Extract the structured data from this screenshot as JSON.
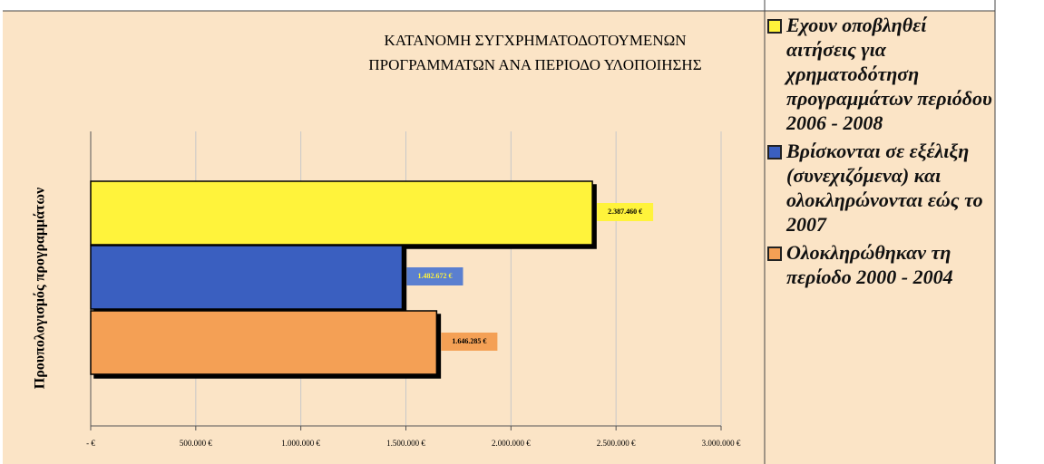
{
  "chart_data": {
    "type": "barh",
    "title": [
      "ΚΑΤΑΝΟΜΗ ΣΥΓΧΡΗΜΑΤΟΔΟΤΟΥΜΕΝΩΝ",
      "ΠΡΟΓΡΑΜΜΑΤΩΝ ΑΝΑ ΠΕΡΙΟΔΟ ΥΛΟΠΟΙΗΣΗΣ"
    ],
    "y_label": "Προυπολογισμός προγραμμάτων",
    "series": [
      {
        "name": "Εχουν οποβληθεί αιτήσεις για χρηματοδότηση προγραμμάτων περιόδου 2006 - 2008",
        "color": "#fff33b",
        "values": [
          2387460
        ],
        "value_labels": [
          "2.387.460 €"
        ]
      },
      {
        "name": "Βρίσκονται σε εξέλιξη (συνεχιζόμενα) και ολοκληρώνονται εώς το 2007",
        "color": "#3a5fc0",
        "values": [
          1482672
        ],
        "value_labels": [
          "1.482.672 €"
        ]
      },
      {
        "name": "Ολοκληρώθηκαν τη περίοδο 2000 - 2004",
        "color": "#f4a055",
        "values": [
          1646285
        ],
        "value_labels": [
          "1.646.285 €"
        ]
      }
    ],
    "xlim": [
      0,
      3000000
    ],
    "xticks": [
      {
        "value": 0,
        "label": "- €"
      },
      {
        "value": 500000,
        "label": "500.000 €"
      },
      {
        "value": 1000000,
        "label": "1.000.000 €"
      },
      {
        "value": 1500000,
        "label": "1.500.000 €"
      },
      {
        "value": 2000000,
        "label": "2.000.000 €"
      },
      {
        "value": 2500000,
        "label": "2.500.000 €"
      },
      {
        "value": 3000000,
        "label": "3.000.000 €"
      }
    ],
    "grid": true
  }
}
